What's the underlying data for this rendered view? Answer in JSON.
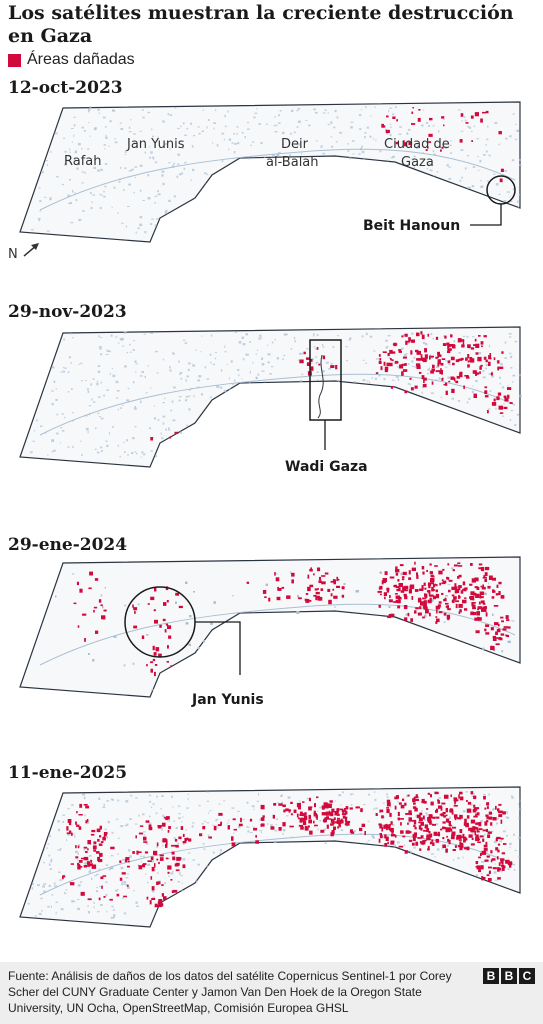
{
  "title": "Los satélites muestran la creciente destrucción en Gaza",
  "legend": {
    "label": "Áreas dañadas",
    "color": "#d20a3c"
  },
  "colors": {
    "land": "#f7f8fa",
    "outline": "#2b3440",
    "urban": "#a9bfd3",
    "damage": "#d20a3c"
  },
  "north_label": "N",
  "panels": [
    {
      "date": "12-oct-2023",
      "places": [
        "Rafah",
        "Jan Yunis",
        "Deir",
        "al-Balah",
        "Ciudad de",
        "Gaza"
      ],
      "callout": "Beit Hanoun",
      "damage_level": 0.03
    },
    {
      "date": "29-nov-2023",
      "callout": "Wadi Gaza",
      "damage_level": 0.3
    },
    {
      "date": "29-ene-2024",
      "callout": "Jan Yunis",
      "damage_level": 0.5
    },
    {
      "date": "11-ene-2025",
      "damage_level": 0.7
    }
  ],
  "source": "Fuente: Análisis de daños de los datos del satélite Copernicus Sentinel-1 por Corey Scher del CUNY Graduate Center y Jamon Van Den Hoek de la Oregon State University, UN Ocha, OpenStreetMap, Comisión Europea GHSL",
  "logo": [
    "B",
    "B",
    "C"
  ]
}
